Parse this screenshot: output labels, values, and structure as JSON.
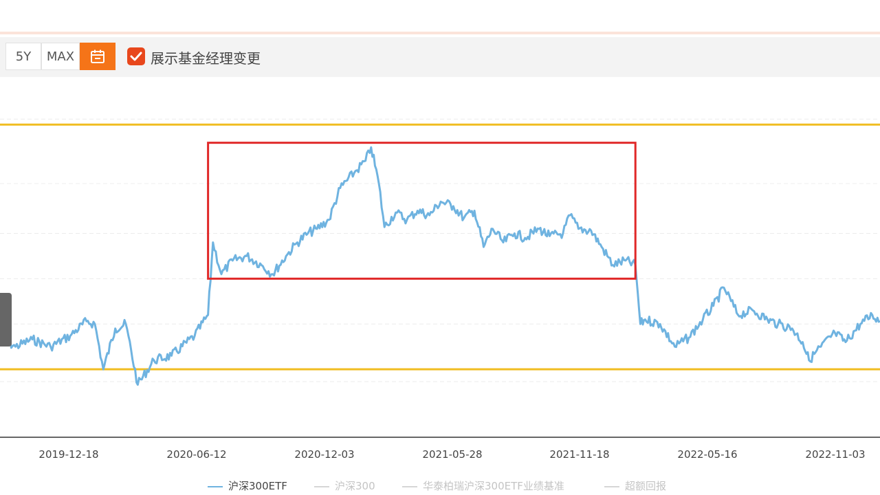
{
  "toolbar": {
    "range_5y": "5Y",
    "range_max": "MAX",
    "calendar_icon": "calendar-icon",
    "show_manager_change_label": "展示基金经理变更",
    "show_manager_change_checked": true,
    "accent_color": "#f57418",
    "checkbox_color": "#e8471c"
  },
  "chart_data": {
    "type": "line",
    "x_ticks": [
      "2019-12-18",
      "2020-06-12",
      "2020-12-03",
      "2021-05-28",
      "2021-11-18",
      "2022-05-16",
      "2022-11-03"
    ],
    "series": [
      {
        "name": "沪深300ETF",
        "color": "#6fb3e0",
        "points": [
          [
            "2019-09-09",
            3.4
          ],
          [
            "2019-10-01",
            3.3
          ],
          [
            "2019-10-25",
            3.38
          ],
          [
            "2019-11-20",
            3.3
          ],
          [
            "2019-12-18",
            3.42
          ],
          [
            "2020-01-10",
            3.58
          ],
          [
            "2020-01-22",
            3.55
          ],
          [
            "2020-02-03",
            3.05
          ],
          [
            "2020-02-20",
            3.5
          ],
          [
            "2020-03-06",
            3.55
          ],
          [
            "2020-03-23",
            2.88
          ],
          [
            "2020-04-15",
            3.15
          ],
          [
            "2020-05-10",
            3.2
          ],
          [
            "2020-06-12",
            3.42
          ],
          [
            "2020-07-01",
            3.65
          ],
          [
            "2020-07-08",
            4.45
          ],
          [
            "2020-07-20",
            4.1
          ],
          [
            "2020-08-05",
            4.25
          ],
          [
            "2020-08-25",
            4.3
          ],
          [
            "2020-09-15",
            4.2
          ],
          [
            "2020-10-01",
            4.1
          ],
          [
            "2020-10-20",
            4.3
          ],
          [
            "2020-11-05",
            4.45
          ],
          [
            "2020-11-20",
            4.55
          ],
          [
            "2020-12-03",
            4.6
          ],
          [
            "2020-12-20",
            4.7
          ],
          [
            "2021-01-05",
            5.05
          ],
          [
            "2021-01-25",
            5.22
          ],
          [
            "2021-02-10",
            5.35
          ],
          [
            "2021-02-18",
            5.5
          ],
          [
            "2021-03-01",
            5.1
          ],
          [
            "2021-03-09",
            4.62
          ],
          [
            "2021-03-25",
            4.78
          ],
          [
            "2021-04-10",
            4.7
          ],
          [
            "2021-04-25",
            4.8
          ],
          [
            "2021-05-12",
            4.75
          ],
          [
            "2021-05-28",
            4.9
          ],
          [
            "2021-06-15",
            4.85
          ],
          [
            "2021-06-30",
            4.72
          ],
          [
            "2021-07-15",
            4.8
          ],
          [
            "2021-07-28",
            4.4
          ],
          [
            "2021-08-10",
            4.6
          ],
          [
            "2021-08-25",
            4.45
          ],
          [
            "2021-09-10",
            4.55
          ],
          [
            "2021-09-25",
            4.5
          ],
          [
            "2021-10-15",
            4.6
          ],
          [
            "2021-10-30",
            4.52
          ],
          [
            "2021-11-18",
            4.55
          ],
          [
            "2021-11-28",
            4.75
          ],
          [
            "2021-12-10",
            4.6
          ],
          [
            "2021-12-28",
            4.58
          ],
          [
            "2022-01-12",
            4.4
          ],
          [
            "2022-01-28",
            4.2
          ],
          [
            "2022-02-15",
            4.25
          ],
          [
            "2022-03-01",
            4.2
          ],
          [
            "2022-03-08",
            3.55
          ],
          [
            "2022-03-15",
            3.6
          ],
          [
            "2022-04-05",
            3.55
          ],
          [
            "2022-04-26",
            3.3
          ],
          [
            "2022-05-16",
            3.4
          ],
          [
            "2022-06-05",
            3.6
          ],
          [
            "2022-06-20",
            3.75
          ],
          [
            "2022-07-05",
            3.95
          ],
          [
            "2022-07-25",
            3.65
          ],
          [
            "2022-08-15",
            3.7
          ],
          [
            "2022-09-05",
            3.6
          ],
          [
            "2022-09-20",
            3.55
          ],
          [
            "2022-10-10",
            3.5
          ],
          [
            "2022-10-25",
            3.35
          ],
          [
            "2022-11-03",
            3.15
          ],
          [
            "2022-11-20",
            3.3
          ],
          [
            "2022-12-10",
            3.45
          ],
          [
            "2022-12-25",
            3.35
          ],
          [
            "2023-01-15",
            3.55
          ],
          [
            "2023-02-01",
            3.65
          ],
          [
            "2023-02-12",
            3.58
          ]
        ]
      },
      {
        "name": "沪深300",
        "color": "#d6d6d6"
      },
      {
        "name": "华泰柏瑞沪深300ETF业绩基准",
        "color": "#d6d6d6"
      },
      {
        "name": "超额回报",
        "color": "#d6d6d6"
      }
    ],
    "x_range": [
      "2019-09-09",
      "2023-02-12"
    ],
    "ylim": [
      2.3,
      6.2
    ],
    "reference_lines": [
      {
        "value": 5.75,
        "color": "#f0bd21"
      },
      {
        "value": 3.05,
        "color": "#f0bd21"
      }
    ],
    "highlight_box": {
      "x_start": "2020-07-01",
      "x_end": "2022-03-01",
      "y_bottom": 4.05,
      "y_top": 5.55,
      "color": "#e02828"
    },
    "grid": "dashed-horizontal",
    "legend_position": "bottom-center"
  }
}
